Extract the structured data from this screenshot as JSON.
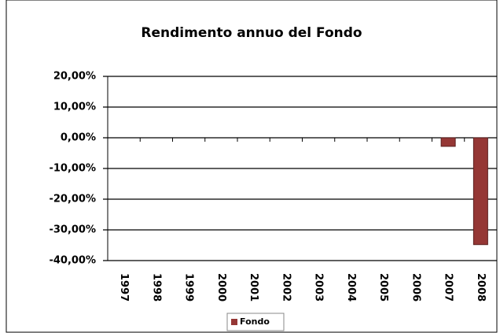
{
  "chart_data": {
    "type": "bar",
    "title": "Rendimento annuo del Fondo",
    "categories": [
      "1997",
      "1998",
      "1999",
      "2000",
      "2001",
      "2002",
      "2003",
      "2004",
      "2005",
      "2006",
      "2007",
      "2008"
    ],
    "series": [
      {
        "name": "Fondo",
        "color": "#953735",
        "values": [
          null,
          null,
          null,
          null,
          null,
          null,
          null,
          null,
          null,
          null,
          -2.8,
          -34.8
        ]
      }
    ],
    "ylim": [
      -40,
      20
    ],
    "yticks": [
      {
        "value": 20,
        "label": "20,00%"
      },
      {
        "value": 10,
        "label": "10,00%"
      },
      {
        "value": 0,
        "label": "0,00%"
      },
      {
        "value": -10,
        "label": "-10,00%"
      },
      {
        "value": -20,
        "label": "-20,00%"
      },
      {
        "value": -30,
        "label": "-30,00%"
      },
      {
        "value": -40,
        "label": "-40,00%"
      }
    ],
    "grid": true,
    "legend": "bottom"
  }
}
